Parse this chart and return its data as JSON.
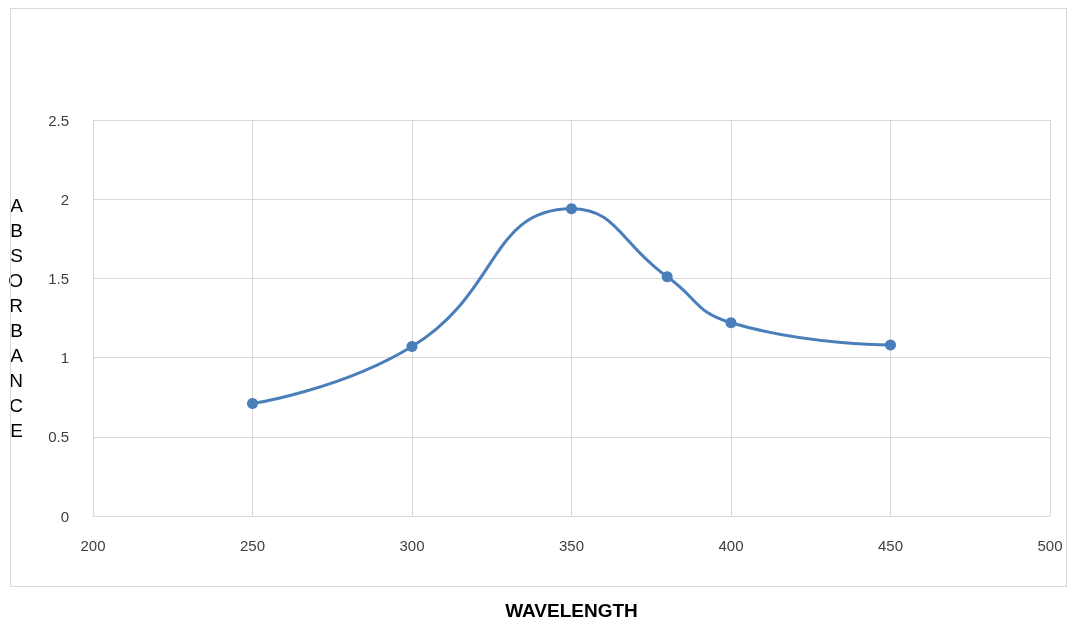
{
  "chart_data": {
    "type": "line",
    "xlabel": "WAVELENGTH",
    "ylabel": "ABSORBANCE",
    "x": [
      250,
      300,
      350,
      380,
      400,
      450
    ],
    "series": [
      {
        "color": "#4a7ebb",
        "values": [
          0.71,
          1.07,
          1.94,
          1.51,
          1.22,
          1.08
        ]
      }
    ],
    "xlim": [
      200,
      500
    ],
    "xticks": [
      200,
      250,
      300,
      350,
      400,
      450,
      500
    ],
    "ylim": [
      0,
      2.5
    ],
    "yticks": [
      0,
      0.5,
      1,
      1.5,
      2,
      2.5
    ],
    "grid": true,
    "marker": "circle",
    "line_style": "solid"
  }
}
